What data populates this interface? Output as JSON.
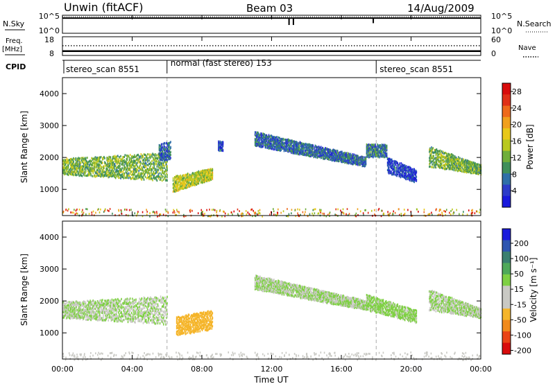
{
  "header": {
    "station": "Unwin (fitACF)",
    "beam": "Beam 03",
    "date": "14/Aug/2009"
  },
  "colors": {
    "power_scale": [
      "#1a1adc",
      "#2d3cc8",
      "#2f6fa8",
      "#3f8f5a",
      "#6fae3a",
      "#b9c81e",
      "#e8c81a",
      "#f0a01e",
      "#ee6a1c",
      "#e03018",
      "#d80c0c"
    ],
    "velocity_scale": [
      "#d80c0c",
      "#ea4416",
      "#f08a1c",
      "#f5b52a",
      "#c9c9c4",
      "#c9c9c4",
      "#7fd044",
      "#4fa95a",
      "#3a7f70",
      "#2d55b0",
      "#1a1adc"
    ]
  },
  "chart_data": [
    {
      "type": "line",
      "panel": "noise",
      "left_label": "N.Sky",
      "right_label": "N.Search",
      "left_ticks": [
        "10^5",
        "10^0"
      ],
      "right_ticks": [
        "10^5",
        "10^0"
      ],
      "ylim_log10": [
        0,
        5
      ],
      "series": [
        {
          "x": [
            "00:00",
            "24:00"
          ],
          "y_log10": [
            4.2,
            4.2
          ],
          "style": "solid"
        },
        {
          "x": [
            "00:00",
            "24:00"
          ],
          "y_log10": [
            4.6,
            4.6
          ],
          "style": "dotted"
        }
      ],
      "dips": [
        {
          "x": "13:00",
          "y_log10": 2.3
        },
        {
          "x": "13:15",
          "y_log10": 2.3
        },
        {
          "x": "17:50",
          "y_log10": 2.8
        }
      ]
    },
    {
      "type": "line",
      "panel": "frequency",
      "left_label": "Freq.",
      "left_unit": "[MHz]",
      "right_label": "Nave",
      "left_ticks": [
        "18",
        "8"
      ],
      "right_ticks": [
        "60",
        "0"
      ],
      "ylim": [
        8,
        18
      ],
      "series": [
        {
          "x": [
            "00:00",
            "24:00"
          ],
          "y": [
            10.3,
            10.3
          ],
          "style": "solid"
        },
        {
          "x": [
            "00:00",
            "24:00"
          ],
          "y": [
            13.2,
            13.2
          ],
          "style": "dotted"
        }
      ]
    },
    {
      "type": "table",
      "panel": "cpid",
      "label": "CPID",
      "segments": [
        {
          "start": "00:00",
          "end": "06:00",
          "text": "stereo_scan 8551"
        },
        {
          "start": "06:00",
          "end": "18:00",
          "text": "normal (fast stereo) 153"
        },
        {
          "start": "18:00",
          "end": "24:00",
          "text": "stereo_scan 8551"
        }
      ]
    },
    {
      "type": "heatmap",
      "panel": "power",
      "ylabel": "Slant Range [km]",
      "yticks": [
        "1000",
        "2000",
        "3000",
        "4000"
      ],
      "ylim": [
        180,
        4500
      ],
      "xlim_hours": [
        0,
        24
      ],
      "colorbar_title": "Power [dB]",
      "colorbar_ticks": [
        "4",
        "8",
        "12",
        "16",
        "20",
        "24",
        "28"
      ],
      "clim": [
        0,
        30
      ],
      "echo_regions": [
        {
          "t0": 0.0,
          "t1": 6.0,
          "r0": 1450,
          "r1": 1950,
          "r2": 1250,
          "r3": 2150,
          "level": 12
        },
        {
          "t0": 5.5,
          "t1": 6.2,
          "r0": 1900,
          "r1": 2400,
          "r2": 1900,
          "r3": 2500,
          "level": 5
        },
        {
          "t0": 6.3,
          "t1": 8.6,
          "r0": 900,
          "r1": 1400,
          "r2": 1300,
          "r3": 1650,
          "level": 15
        },
        {
          "t0": 8.9,
          "t1": 9.2,
          "r0": 2200,
          "r1": 2500,
          "r2": 2200,
          "r3": 2500,
          "level": 4
        },
        {
          "t0": 11.0,
          "t1": 17.4,
          "r0": 2350,
          "r1": 2800,
          "r2": 1700,
          "r3": 2000,
          "level": 6
        },
        {
          "t0": 17.4,
          "t1": 18.6,
          "r0": 2000,
          "r1": 2400,
          "r2": 2000,
          "r3": 2400,
          "level": 7
        },
        {
          "t0": 18.6,
          "t1": 20.3,
          "r0": 1500,
          "r1": 2000,
          "r2": 1200,
          "r3": 1600,
          "level": 3
        },
        {
          "t0": 21.0,
          "t1": 24.0,
          "r0": 1700,
          "r1": 2350,
          "r2": 1450,
          "r3": 1750,
          "level": 12
        }
      ],
      "ground_band": {
        "r0": 180,
        "r1": 420,
        "level": 20
      }
    },
    {
      "type": "heatmap",
      "panel": "velocity",
      "ylabel": "Slant Range [km]",
      "yticks": [
        "1000",
        "2000",
        "3000",
        "4000"
      ],
      "ylim": [
        180,
        4500
      ],
      "xlim_hours": [
        0,
        24
      ],
      "colorbar_title": "Velocity [m s⁻¹]",
      "colorbar_ticks": [
        "200",
        "100",
        "50",
        "15",
        "-15",
        "-50",
        "-100",
        "-200"
      ],
      "echo_regions": [
        {
          "t0": 0.0,
          "t1": 6.0,
          "r0": 1450,
          "r1": 1950,
          "r2": 1250,
          "r3": 2150,
          "velocity": 0
        },
        {
          "t0": 6.5,
          "t1": 8.6,
          "r0": 900,
          "r1": 1500,
          "r2": 1100,
          "r3": 1700,
          "velocity": -60
        },
        {
          "t0": 11.0,
          "t1": 17.4,
          "r0": 2350,
          "r1": 2800,
          "r2": 1700,
          "r3": 2000,
          "velocity": 0
        },
        {
          "t0": 17.4,
          "t1": 20.3,
          "r0": 1700,
          "r1": 2200,
          "r2": 1300,
          "r3": 1700,
          "velocity": 5
        },
        {
          "t0": 21.0,
          "t1": 24.0,
          "r0": 1700,
          "r1": 2350,
          "r2": 1450,
          "r3": 1750,
          "velocity": 0
        }
      ],
      "ground_band": {
        "r0": 180,
        "r1": 420,
        "velocity": -20
      }
    }
  ],
  "xaxis": {
    "label": "Time UT",
    "ticks": [
      "00:00",
      "04:00",
      "08:00",
      "12:00",
      "16:00",
      "20:00",
      "00:00"
    ]
  }
}
